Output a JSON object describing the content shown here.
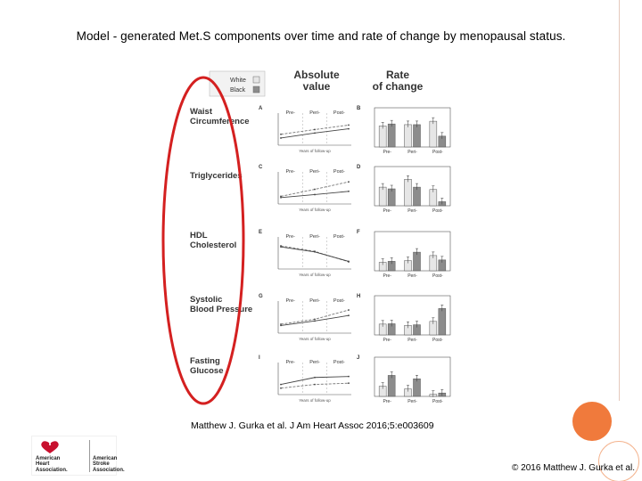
{
  "slide": {
    "title": "Model - generated Met.S components over time and rate of change by menopausal status.",
    "citation": "Matthew J. Gurka et al. J Am Heart Assoc 2016;5:e003609",
    "copyright": "© 2016 Matthew J. Gurka et al.",
    "logos": {
      "aha_line1": "American",
      "aha_line2": "Heart",
      "aha_line3": "Association.",
      "asa_line1": "American",
      "asa_line2": "Stroke",
      "asa_line3": "Association."
    }
  },
  "figure": {
    "legend": [
      "White",
      "Black"
    ],
    "column_headers": [
      "Absolute\nvalue",
      "Rate\nof change"
    ],
    "panel_letters": [
      "A",
      "B",
      "C",
      "D",
      "E",
      "F",
      "G",
      "H",
      "I",
      "J"
    ],
    "stage_labels": [
      "Pre-",
      "Peri-",
      "Post-"
    ],
    "rows": [
      {
        "label": "Waist\nCircumference",
        "xlabel": "Years of follow-up"
      },
      {
        "label": "Triglycerides",
        "xlabel": "Years of follow-up"
      },
      {
        "label": "HDL\nCholesterol",
        "xlabel": "Years of follow-up"
      },
      {
        "label": "Systolic\nBlood Pressure",
        "xlabel": "Years of follow-up"
      },
      {
        "label": "Fasting\nGlucose",
        "xlabel": "Years of follow-up"
      }
    ],
    "colors": {
      "white_bar": "#e6e6e6",
      "black_bar": "#8c8c8c",
      "highlight_ellipse": "#d42020"
    }
  },
  "chart_data": [
    {
      "type": "line",
      "row": "Waist Circumference",
      "x_stages": [
        "Pre-",
        "Peri-",
        "Post-"
      ],
      "series": [
        {
          "name": "White",
          "values": [
            0.33,
            0.52,
            0.7
          ]
        },
        {
          "name": "Black",
          "values": [
            0.18,
            0.38,
            0.55
          ]
        }
      ]
    },
    {
      "type": "bar",
      "row": "Waist Circumference",
      "categories": [
        "Pre-",
        "Peri-",
        "Post-"
      ],
      "series": [
        {
          "name": "White",
          "values": [
            0.62,
            0.66,
            0.76
          ]
        },
        {
          "name": "Black",
          "values": [
            0.68,
            0.66,
            0.32
          ]
        }
      ]
    },
    {
      "type": "line",
      "row": "Triglycerides",
      "x_stages": [
        "Pre-",
        "Peri-",
        "Post-"
      ],
      "series": [
        {
          "name": "White",
          "values": [
            0.2,
            0.48,
            0.78
          ]
        },
        {
          "name": "Black",
          "values": [
            0.15,
            0.27,
            0.4
          ]
        }
      ]
    },
    {
      "type": "bar",
      "row": "Triglycerides",
      "categories": [
        "Pre-",
        "Peri-",
        "Post-"
      ],
      "series": [
        {
          "name": "White",
          "values": [
            0.55,
            0.78,
            0.48
          ]
        },
        {
          "name": "Black",
          "values": [
            0.5,
            0.55,
            0.12
          ]
        }
      ]
    },
    {
      "type": "line",
      "row": "HDL Cholesterol",
      "x_stages": [
        "Pre-",
        "Peri-",
        "Post-"
      ],
      "series": [
        {
          "name": "White",
          "values": [
            0.82,
            0.6,
            0.18
          ]
        },
        {
          "name": "Black",
          "values": [
            0.78,
            0.58,
            0.2
          ]
        }
      ]
    },
    {
      "type": "bar",
      "row": "HDL Cholesterol",
      "categories": [
        "Pre-",
        "Peri-",
        "Post-"
      ],
      "series": [
        {
          "name": "White",
          "values": [
            0.25,
            0.3,
            0.45
          ]
        },
        {
          "name": "Black",
          "values": [
            0.28,
            0.55,
            0.32
          ]
        }
      ]
    },
    {
      "type": "line",
      "row": "Systolic Blood Pressure",
      "x_stages": [
        "Pre-",
        "Peri-",
        "Post-"
      ],
      "series": [
        {
          "name": "White",
          "values": [
            0.25,
            0.45,
            0.82
          ]
        },
        {
          "name": "Black",
          "values": [
            0.2,
            0.38,
            0.6
          ]
        }
      ]
    },
    {
      "type": "bar",
      "row": "Systolic Blood Pressure",
      "categories": [
        "Pre-",
        "Peri-",
        "Post-"
      ],
      "series": [
        {
          "name": "White",
          "values": [
            0.32,
            0.28,
            0.4
          ]
        },
        {
          "name": "Black",
          "values": [
            0.33,
            0.3,
            0.78
          ]
        }
      ]
    },
    {
      "type": "line",
      "row": "Fasting Glucose",
      "x_stages": [
        "Pre-",
        "Peri-",
        "Post-"
      ],
      "series": [
        {
          "name": "White",
          "values": [
            0.15,
            0.3,
            0.35
          ]
        },
        {
          "name": "Black",
          "values": [
            0.3,
            0.58,
            0.62
          ]
        }
      ]
    },
    {
      "type": "bar",
      "row": "Fasting Glucose",
      "categories": [
        "Pre-",
        "Peri-",
        "Post-"
      ],
      "series": [
        {
          "name": "White",
          "values": [
            0.3,
            0.22,
            0.06
          ]
        },
        {
          "name": "Black",
          "values": [
            0.62,
            0.52,
            0.1
          ]
        }
      ]
    }
  ]
}
